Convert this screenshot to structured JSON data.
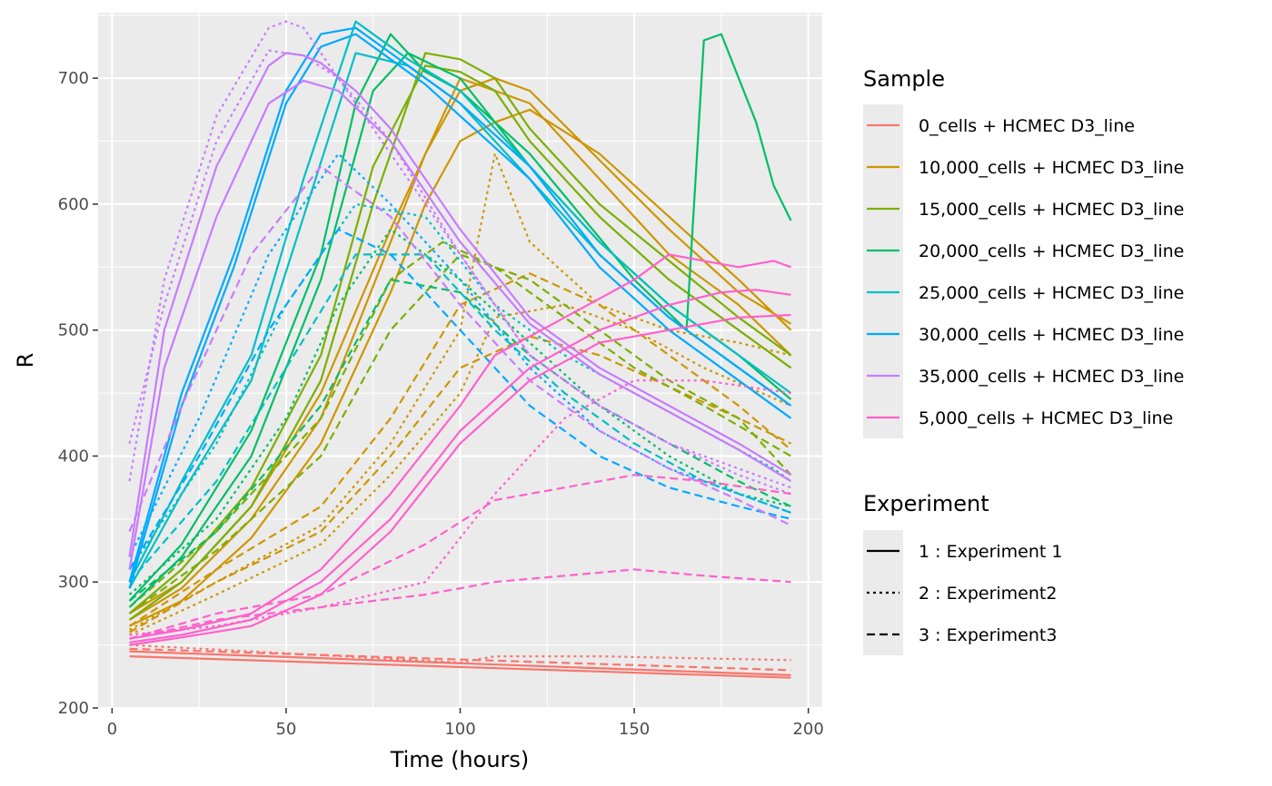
{
  "chart_data": {
    "type": "line",
    "xlabel": "Time (hours)",
    "ylabel": "R",
    "xlim": [
      -4,
      204
    ],
    "ylim": [
      200,
      752
    ],
    "x_ticks": [
      0,
      50,
      100,
      150,
      200
    ],
    "y_ticks": [
      200,
      300,
      400,
      500,
      600,
      700
    ],
    "grid": true,
    "legend_position": "right",
    "sample_legend": {
      "title": "Sample",
      "entries": [
        {
          "label": "0_cells + HCMEC D3_line",
          "color": "#F8766D"
        },
        {
          "label": "10,000_cells + HCMEC D3_line",
          "color": "#CD9600"
        },
        {
          "label": "15,000_cells + HCMEC D3_line",
          "color": "#7CAE00"
        },
        {
          "label": "20,000_cells + HCMEC D3_line",
          "color": "#00BE67"
        },
        {
          "label": "25,000_cells + HCMEC D3_line",
          "color": "#00BFC4"
        },
        {
          "label": "30,000_cells + HCMEC D3_line",
          "color": "#00A9FF"
        },
        {
          "label": "35,000_cells + HCMEC D3_line",
          "color": "#C77CFF"
        },
        {
          "label": "5,000_cells + HCMEC D3_line",
          "color": "#FF61CC"
        }
      ]
    },
    "experiment_legend": {
      "title": "Experiment",
      "entries": [
        {
          "label": "1 : Experiment 1",
          "dash": "solid"
        },
        {
          "label": "2 : Experiment2",
          "dash": "dotted"
        },
        {
          "label": "3 : Experiment3",
          "dash": "dashed"
        }
      ]
    },
    "series": [
      {
        "sample": 0,
        "experiment": 1,
        "x": [
          5,
          195
        ],
        "y": [
          241,
          224
        ]
      },
      {
        "sample": 0,
        "experiment": 1,
        "x": [
          5,
          195
        ],
        "y": [
          245,
          226
        ]
      },
      {
        "sample": 0,
        "experiment": 2,
        "x": [
          5,
          100,
          110,
          140,
          195
        ],
        "y": [
          250,
          236,
          241,
          241,
          238
        ]
      },
      {
        "sample": 0,
        "experiment": 3,
        "x": [
          5,
          195
        ],
        "y": [
          247,
          230
        ]
      },
      {
        "sample": 1,
        "experiment": 1,
        "x": [
          5,
          20,
          40,
          60,
          80,
          90,
          100,
          110,
          120,
          140,
          160,
          180,
          195
        ],
        "y": [
          265,
          285,
          335,
          410,
          530,
          600,
          650,
          665,
          675,
          640,
          590,
          540,
          500
        ]
      },
      {
        "sample": 1,
        "experiment": 1,
        "x": [
          5,
          20,
          40,
          60,
          80,
          90,
          100,
          110,
          120,
          140,
          160,
          180,
          195
        ],
        "y": [
          270,
          295,
          350,
          430,
          570,
          640,
          690,
          700,
          690,
          635,
          580,
          530,
          505
        ]
      },
      {
        "sample": 1,
        "experiment": 1,
        "x": [
          5,
          20,
          40,
          60,
          80,
          100,
          120,
          140,
          160,
          180,
          195
        ],
        "y": [
          275,
          300,
          360,
          450,
          580,
          700,
          680,
          620,
          560,
          520,
          480
        ]
      },
      {
        "sample": 1,
        "experiment": 2,
        "x": [
          5,
          30,
          60,
          80,
          100,
          110,
          120,
          140,
          160,
          180,
          195
        ],
        "y": [
          262,
          300,
          345,
          410,
          500,
          640,
          570,
          520,
          500,
          490,
          480
        ]
      },
      {
        "sample": 1,
        "experiment": 2,
        "x": [
          5,
          30,
          60,
          80,
          100,
          110,
          130,
          150,
          170,
          195
        ],
        "y": [
          258,
          290,
          330,
          385,
          450,
          510,
          520,
          500,
          470,
          440
        ]
      },
      {
        "sample": 1,
        "experiment": 3,
        "x": [
          5,
          30,
          60,
          80,
          100,
          120,
          140,
          160,
          180,
          195
        ],
        "y": [
          265,
          310,
          360,
          430,
          520,
          545,
          520,
          480,
          440,
          405
        ]
      },
      {
        "sample": 1,
        "experiment": 3,
        "x": [
          5,
          30,
          60,
          80,
          100,
          120,
          140,
          160,
          180,
          195
        ],
        "y": [
          260,
          300,
          340,
          400,
          470,
          495,
          480,
          455,
          430,
          410
        ]
      },
      {
        "sample": 2,
        "experiment": 1,
        "x": [
          5,
          20,
          40,
          60,
          75,
          90,
          100,
          110,
          120,
          140,
          160,
          180,
          195
        ],
        "y": [
          270,
          300,
          360,
          460,
          600,
          720,
          715,
          700,
          660,
          600,
          555,
          510,
          480
        ]
      },
      {
        "sample": 2,
        "experiment": 1,
        "x": [
          5,
          20,
          40,
          60,
          75,
          90,
          100,
          110,
          120,
          140,
          160,
          180,
          195
        ],
        "y": [
          275,
          310,
          375,
          480,
          630,
          710,
          705,
          690,
          650,
          590,
          540,
          500,
          470
        ]
      },
      {
        "sample": 2,
        "experiment": 3,
        "x": [
          5,
          30,
          60,
          80,
          95,
          110,
          130,
          150,
          170,
          195
        ],
        "y": [
          280,
          340,
          430,
          540,
          570,
          550,
          510,
          470,
          440,
          400
        ]
      },
      {
        "sample": 2,
        "experiment": 3,
        "x": [
          5,
          30,
          60,
          80,
          100,
          120,
          140,
          160,
          180,
          195
        ],
        "y": [
          275,
          325,
          400,
          500,
          560,
          540,
          500,
          460,
          430,
          385
        ]
      },
      {
        "sample": 3,
        "experiment": 1,
        "x": [
          5,
          20,
          40,
          60,
          70,
          80,
          90,
          100,
          120,
          150,
          165,
          170,
          175,
          185,
          190,
          195
        ],
        "y": [
          285,
          330,
          420,
          560,
          680,
          735,
          705,
          690,
          640,
          540,
          500,
          730,
          735,
          665,
          615,
          587
        ]
      },
      {
        "sample": 3,
        "experiment": 1,
        "x": [
          5,
          20,
          40,
          60,
          75,
          85,
          100,
          120,
          140,
          160,
          180,
          195
        ],
        "y": [
          280,
          320,
          400,
          540,
          690,
          720,
          700,
          630,
          570,
          520,
          480,
          445
        ]
      },
      {
        "sample": 3,
        "experiment": 2,
        "x": [
          5,
          30,
          50,
          65,
          80,
          100,
          120,
          140,
          160,
          180,
          195
        ],
        "y": [
          290,
          350,
          430,
          520,
          580,
          540,
          490,
          440,
          400,
          370,
          360
        ]
      },
      {
        "sample": 3,
        "experiment": 3,
        "x": [
          5,
          30,
          60,
          80,
          100,
          120,
          140,
          160,
          180,
          195
        ],
        "y": [
          285,
          340,
          440,
          540,
          530,
          480,
          440,
          410,
          380,
          360
        ]
      },
      {
        "sample": 4,
        "experiment": 1,
        "x": [
          5,
          20,
          40,
          55,
          70,
          85,
          100,
          120,
          140,
          160,
          180,
          195
        ],
        "y": [
          300,
          380,
          480,
          620,
          745,
          715,
          690,
          630,
          570,
          520,
          480,
          450
        ]
      },
      {
        "sample": 4,
        "experiment": 1,
        "x": [
          5,
          20,
          40,
          55,
          70,
          85,
          100,
          120,
          140,
          160,
          180,
          195
        ],
        "y": [
          295,
          370,
          460,
          590,
          720,
          710,
          680,
          620,
          560,
          510,
          470,
          440
        ]
      },
      {
        "sample": 4,
        "experiment": 2,
        "x": [
          5,
          30,
          50,
          70,
          90,
          110,
          130,
          150,
          170,
          190,
          195
        ],
        "y": [
          310,
          410,
          520,
          600,
          590,
          520,
          480,
          450,
          420,
          390,
          380
        ]
      },
      {
        "sample": 4,
        "experiment": 3,
        "x": [
          5,
          30,
          50,
          70,
          90,
          110,
          130,
          150,
          170,
          195
        ],
        "y": [
          300,
          380,
          470,
          560,
          560,
          500,
          450,
          410,
          380,
          355
        ]
      },
      {
        "sample": 5,
        "experiment": 1,
        "x": [
          5,
          20,
          35,
          50,
          60,
          70,
          80,
          90,
          100,
          120,
          140,
          160,
          180,
          195
        ],
        "y": [
          300,
          450,
          560,
          690,
          735,
          740,
          720,
          700,
          680,
          630,
          560,
          510,
          470,
          440
        ]
      },
      {
        "sample": 5,
        "experiment": 1,
        "x": [
          5,
          20,
          35,
          50,
          60,
          70,
          80,
          90,
          100,
          120,
          140,
          160,
          180,
          195
        ],
        "y": [
          295,
          440,
          550,
          680,
          725,
          735,
          715,
          695,
          670,
          620,
          550,
          500,
          460,
          430
        ]
      },
      {
        "sample": 5,
        "experiment": 2,
        "x": [
          5,
          25,
          45,
          65,
          80,
          100,
          120,
          140,
          160,
          180,
          195
        ],
        "y": [
          320,
          430,
          560,
          640,
          600,
          540,
          470,
          420,
          390,
          370,
          355
        ]
      },
      {
        "sample": 5,
        "experiment": 3,
        "x": [
          5,
          25,
          45,
          65,
          80,
          100,
          120,
          140,
          160,
          180,
          195
        ],
        "y": [
          310,
          400,
          500,
          580,
          560,
          500,
          440,
          400,
          375,
          360,
          350
        ]
      },
      {
        "sample": 6,
        "experiment": 1,
        "x": [
          5,
          15,
          30,
          45,
          50,
          55,
          60,
          70,
          80,
          100,
          120,
          140,
          160,
          180,
          195
        ],
        "y": [
          320,
          500,
          630,
          710,
          720,
          718,
          712,
          690,
          660,
          580,
          510,
          470,
          440,
          410,
          385
        ]
      },
      {
        "sample": 6,
        "experiment": 1,
        "x": [
          5,
          15,
          30,
          45,
          55,
          65,
          80,
          100,
          120,
          140,
          160,
          180,
          195
        ],
        "y": [
          310,
          470,
          590,
          680,
          698,
          690,
          650,
          570,
          505,
          465,
          435,
          405,
          380
        ]
      },
      {
        "sample": 6,
        "experiment": 2,
        "x": [
          5,
          15,
          30,
          45,
          50,
          55,
          60,
          70,
          80,
          100,
          120,
          140,
          160,
          180,
          195
        ],
        "y": [
          380,
          540,
          670,
          740,
          745,
          740,
          720,
          680,
          640,
          560,
          480,
          440,
          410,
          385,
          370
        ]
      },
      {
        "sample": 6,
        "experiment": 2,
        "x": [
          5,
          15,
          30,
          45,
          55,
          65,
          80,
          100,
          120,
          140,
          160,
          180,
          195
        ],
        "y": [
          410,
          520,
          650,
          722,
          718,
          700,
          650,
          560,
          480,
          440,
          410,
          390,
          375
        ]
      },
      {
        "sample": 6,
        "experiment": 3,
        "x": [
          5,
          20,
          40,
          60,
          80,
          100,
          120,
          140,
          160,
          180,
          195
        ],
        "y": [
          340,
          440,
          560,
          630,
          590,
          520,
          460,
          420,
          390,
          365,
          345
        ]
      },
      {
        "sample": 7,
        "experiment": 1,
        "x": [
          5,
          20,
          40,
          60,
          80,
          100,
          110,
          130,
          150,
          160,
          170,
          180,
          190,
          195
        ],
        "y": [
          255,
          262,
          275,
          310,
          370,
          440,
          480,
          510,
          540,
          560,
          555,
          550,
          555,
          550
        ]
      },
      {
        "sample": 7,
        "experiment": 1,
        "x": [
          5,
          20,
          40,
          60,
          80,
          100,
          120,
          140,
          160,
          175,
          185,
          195
        ],
        "y": [
          252,
          258,
          270,
          300,
          350,
          420,
          470,
          500,
          520,
          530,
          532,
          528
        ]
      },
      {
        "sample": 7,
        "experiment": 1,
        "x": [
          5,
          20,
          40,
          60,
          80,
          100,
          120,
          140,
          160,
          180,
          195
        ],
        "y": [
          250,
          256,
          265,
          290,
          340,
          410,
          460,
          490,
          500,
          510,
          512
        ]
      },
      {
        "sample": 7,
        "experiment": 2,
        "x": [
          5,
          30,
          60,
          90,
          110,
          130,
          150,
          170,
          195
        ],
        "y": [
          258,
          265,
          280,
          300,
          370,
          430,
          460,
          460,
          450
        ]
      },
      {
        "sample": 7,
        "experiment": 3,
        "x": [
          5,
          30,
          60,
          90,
          110,
          130,
          150,
          170,
          195
        ],
        "y": [
          255,
          275,
          290,
          330,
          365,
          375,
          385,
          380,
          370
        ]
      },
      {
        "sample": 7,
        "experiment": 3,
        "x": [
          5,
          30,
          60,
          90,
          110,
          130,
          150,
          170,
          195
        ],
        "y": [
          255,
          270,
          280,
          290,
          300,
          305,
          310,
          305,
          300
        ]
      }
    ]
  }
}
